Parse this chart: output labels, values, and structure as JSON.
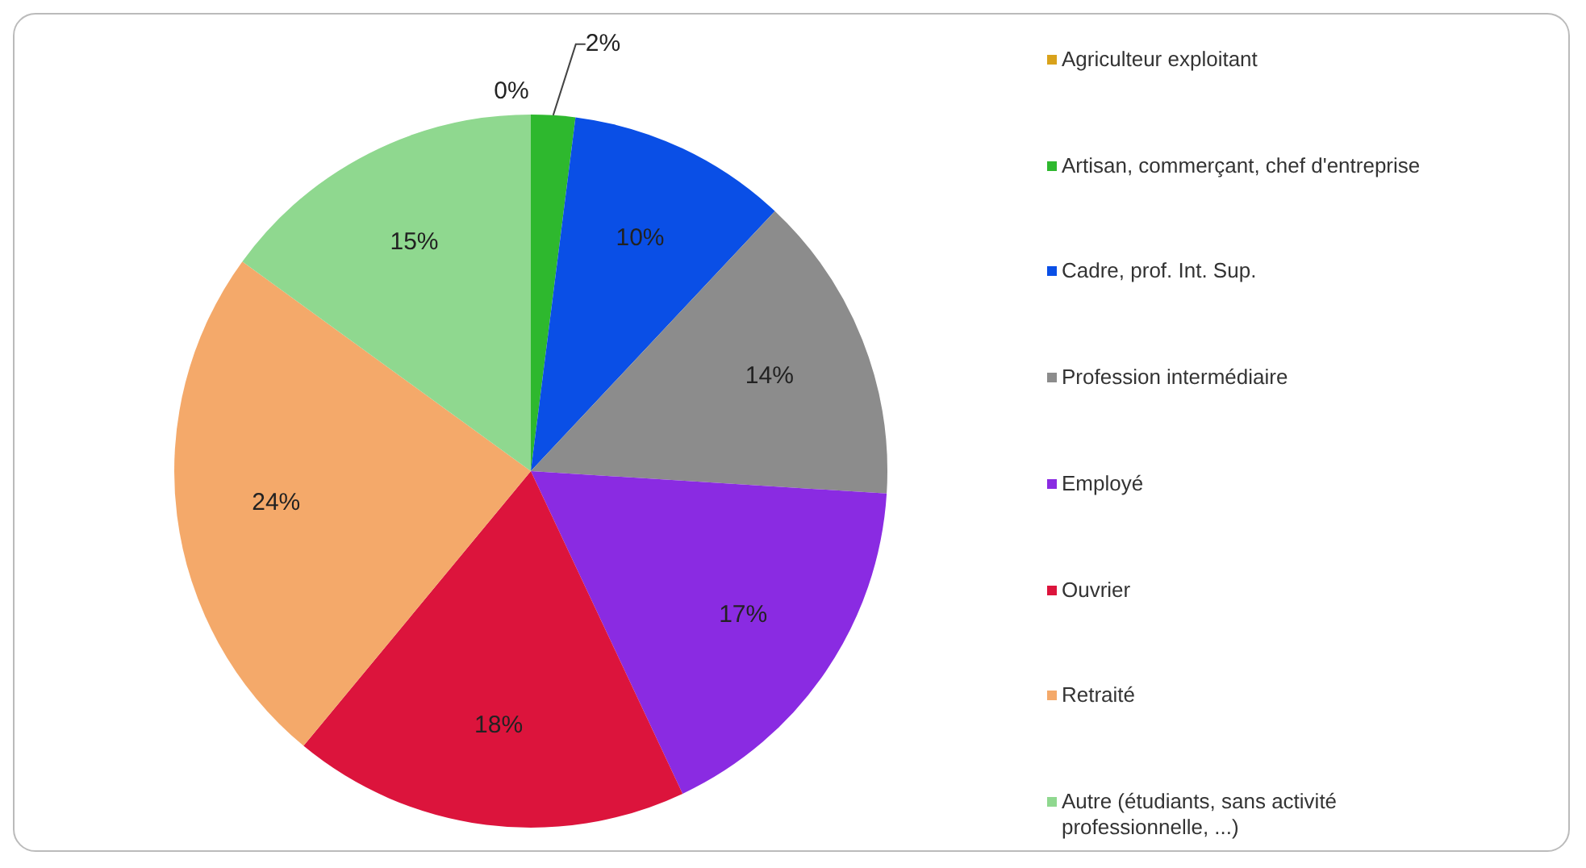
{
  "chart_data": {
    "type": "pie",
    "categories": [
      "Agriculteur exploitant",
      "Artisan, commerçant, chef d'entreprise",
      "Cadre, prof. Int. Sup.",
      "Profession intermédiaire",
      "Employé",
      "Ouvrier",
      "Retraité",
      "Autre (étudiants, sans activité professionnelle, ...)"
    ],
    "values": [
      0,
      2,
      10,
      14,
      17,
      18,
      24,
      15
    ],
    "value_labels": [
      "0%",
      "2%",
      "10%",
      "14%",
      "17%",
      "18%",
      "24%",
      "15%"
    ],
    "colors": [
      "#d9a21b",
      "#2eb82e",
      "#0a4fe6",
      "#8c8c8c",
      "#8a2be2",
      "#dc143c",
      "#f4a96a",
      "#8fd88f"
    ],
    "legend": "right"
  }
}
